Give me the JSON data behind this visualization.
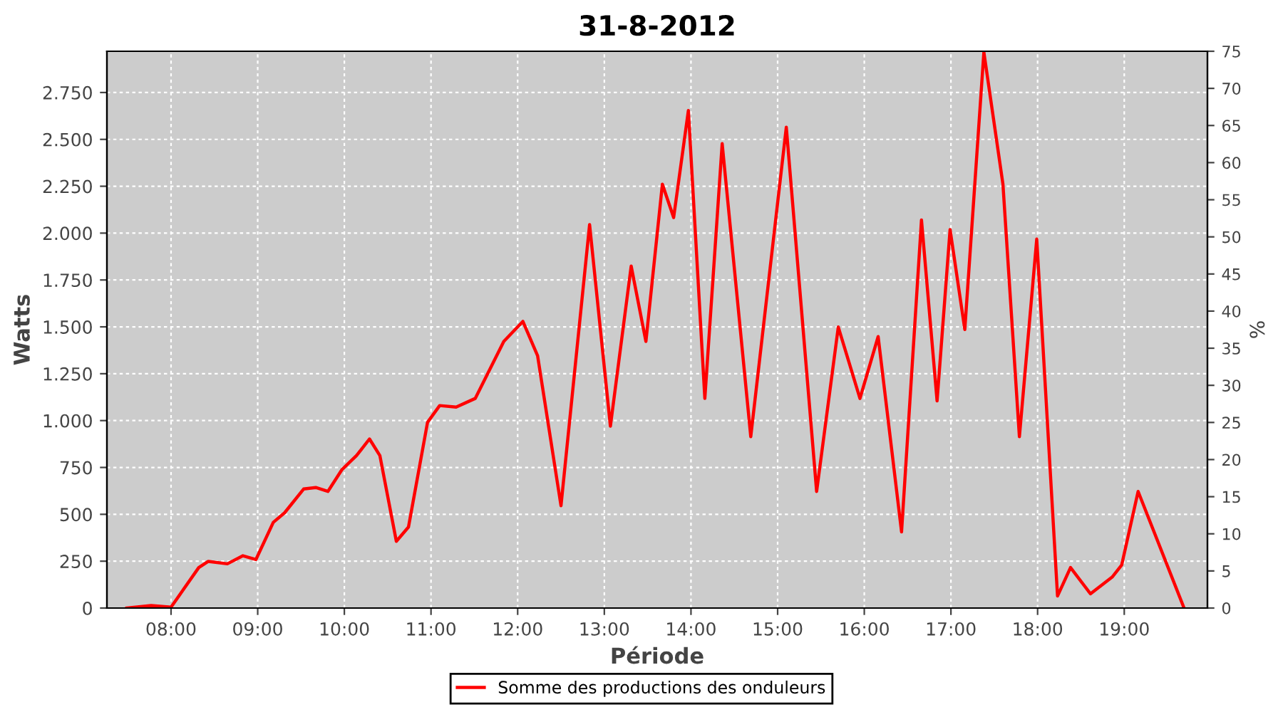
{
  "chart_data": {
    "type": "line",
    "title": "31-8-2012",
    "xlabel": "Période",
    "ylabel": "Watts",
    "y2label": "%",
    "x": [
      7.49,
      7.77,
      8.0,
      8.32,
      8.43,
      8.65,
      8.83,
      8.98,
      9.18,
      9.31,
      9.53,
      9.67,
      9.81,
      9.97,
      10.14,
      10.29,
      10.41,
      10.6,
      10.74,
      10.96,
      11.1,
      11.29,
      11.51,
      11.84,
      12.06,
      12.23,
      12.5,
      12.83,
      13.07,
      13.31,
      13.48,
      13.67,
      13.8,
      13.97,
      14.16,
      14.36,
      14.69,
      15.1,
      15.45,
      15.7,
      15.95,
      16.16,
      16.43,
      16.66,
      16.84,
      16.99,
      17.16,
      17.38,
      17.6,
      17.79,
      17.99,
      18.23,
      18.38,
      18.61,
      18.86,
      18.97,
      19.16,
      19.69
    ],
    "series": [
      {
        "name": "Somme des productions des onduleurs",
        "color": "#ff0000",
        "values": [
          0,
          13,
          5,
          216,
          249,
          236,
          279,
          259,
          457,
          508,
          635,
          643,
          622,
          737,
          813,
          902,
          813,
          356,
          432,
          991,
          1080,
          1072,
          1118,
          1422,
          1529,
          1346,
          546,
          2045,
          970,
          1824,
          1422,
          2261,
          2083,
          2654,
          1118,
          2477,
          914,
          2565,
          622,
          1499,
          1118,
          1448,
          406,
          2070,
          1105,
          2019,
          1486,
          2965,
          2261,
          914,
          1968,
          64,
          216,
          76,
          165,
          229,
          622,
          0
        ]
      }
    ],
    "xlim": [
      7.26,
      19.96
    ],
    "xticks": [
      {
        "value": 8,
        "label": "08:00"
      },
      {
        "value": 9,
        "label": "09:00"
      },
      {
        "value": 10,
        "label": "10:00"
      },
      {
        "value": 11,
        "label": "11:00"
      },
      {
        "value": 12,
        "label": "12:00"
      },
      {
        "value": 13,
        "label": "13:00"
      },
      {
        "value": 14,
        "label": "14:00"
      },
      {
        "value": 15,
        "label": "15:00"
      },
      {
        "value": 16,
        "label": "16:00"
      },
      {
        "value": 17,
        "label": "17:00"
      },
      {
        "value": 18,
        "label": "18:00"
      },
      {
        "value": 19,
        "label": "19:00"
      }
    ],
    "ylim": [
      0,
      2970
    ],
    "yticks": [
      0,
      250,
      500,
      750,
      {
        "value": 1000,
        "label": "1.000"
      },
      {
        "value": 1250,
        "label": "1.250"
      },
      {
        "value": 1500,
        "label": "1.500"
      },
      {
        "value": 1750,
        "label": "1.750"
      },
      {
        "value": 2000,
        "label": "2.000"
      },
      {
        "value": 2250,
        "label": "2.250"
      },
      {
        "value": 2500,
        "label": "2.500"
      },
      {
        "value": 2750,
        "label": "2.750"
      }
    ],
    "y2lim": [
      0,
      75
    ],
    "y2ticks": [
      0,
      5,
      10,
      15,
      20,
      25,
      30,
      35,
      40,
      45,
      50,
      55,
      60,
      65,
      70,
      75
    ],
    "grid": true,
    "legend": "bottom",
    "marker": "none",
    "line_style": "solid"
  }
}
